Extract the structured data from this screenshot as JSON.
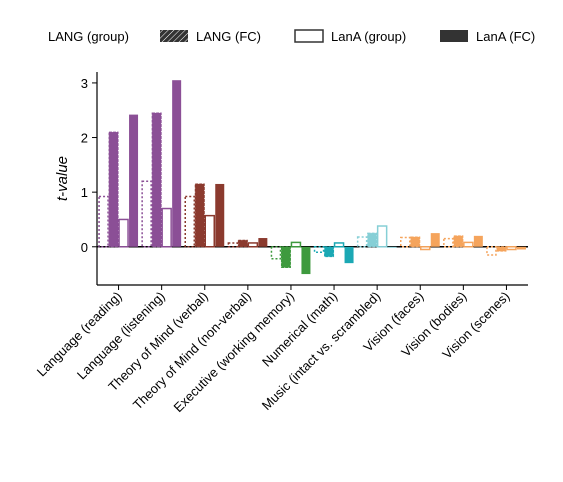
{
  "chart_data": {
    "type": "bar",
    "ylabel": "t-value",
    "ylim": [
      -0.7,
      3.2
    ],
    "yticks": [
      0,
      1,
      2,
      3
    ],
    "legend_position": "top",
    "legend": [
      {
        "label": "LANG (group)",
        "style": "dotted-outline"
      },
      {
        "label": "LANG (FC)",
        "style": "hatched-dark"
      },
      {
        "label": "LanA (group)",
        "style": "outline"
      },
      {
        "label": "LanA (FC)",
        "style": "solid-dark"
      }
    ],
    "categories": [
      "Language (reading)",
      "Language (listening)",
      "Theory of Mind (verbal)",
      "Theory of Mind (non-verbal)",
      "Executive (working memory)",
      "Numerical (math)",
      "Music (intact vs. scrambled)",
      "Vision (faces)",
      "Vision (bodies)",
      "Vision (scenes)"
    ],
    "category_colors": [
      "#8b4f96",
      "#8b4f96",
      "#8b3a2e",
      "#8b3a2e",
      "#3e9a3e",
      "#1ba8b4",
      "#86cfd6",
      "#f5a45c",
      "#f5a45c",
      "#f5a45c"
    ],
    "series": [
      {
        "name": "LANG (group)",
        "values": [
          0.92,
          1.2,
          0.92,
          0.07,
          -0.22,
          -0.1,
          0.18,
          0.17,
          0.15,
          -0.15
        ]
      },
      {
        "name": "LANG (FC)",
        "values": [
          2.1,
          2.45,
          1.15,
          0.12,
          -0.38,
          -0.18,
          0.25,
          0.18,
          0.2,
          -0.08
        ]
      },
      {
        "name": "LanA (group)",
        "values": [
          0.5,
          0.7,
          0.57,
          0.07,
          0.08,
          0.07,
          0.38,
          -0.05,
          0.08,
          -0.05
        ]
      },
      {
        "name": "LanA (FC)",
        "values": [
          2.42,
          3.05,
          1.15,
          0.16,
          -0.5,
          -0.3,
          0.0,
          0.25,
          0.2,
          -0.05
        ]
      }
    ]
  }
}
